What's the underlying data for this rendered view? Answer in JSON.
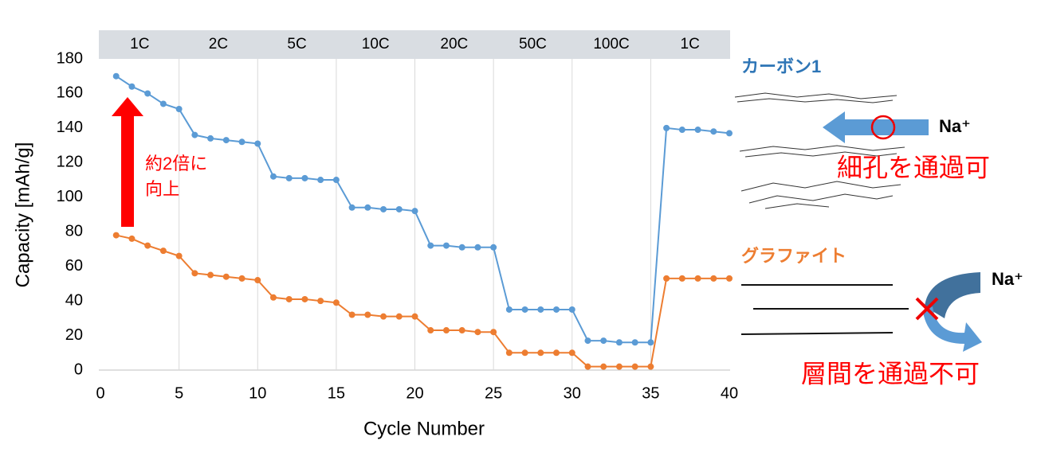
{
  "chart_data": {
    "type": "line",
    "x_label": "Cycle Number",
    "y_label": "Capacity [mAh/g]",
    "bands": [
      "1C",
      "2C",
      "5C",
      "10C",
      "20C",
      "50C",
      "100C",
      "1C"
    ],
    "x": [
      1,
      2,
      3,
      4,
      5,
      6,
      7,
      8,
      9,
      10,
      11,
      12,
      13,
      14,
      15,
      16,
      17,
      18,
      19,
      20,
      21,
      22,
      23,
      24,
      25,
      26,
      27,
      28,
      29,
      30,
      31,
      32,
      33,
      34,
      35,
      36,
      37,
      38,
      39,
      40
    ],
    "series": [
      {
        "name": "カーボン1",
        "color": "#5b9bd5",
        "label_color": "#2e75b6",
        "values": [
          170,
          164,
          160,
          154,
          151,
          136,
          134,
          133,
          132,
          131,
          112,
          111,
          111,
          110,
          110,
          94,
          94,
          93,
          93,
          92,
          72,
          72,
          71,
          71,
          71,
          35,
          35,
          35,
          35,
          35,
          17,
          17,
          16,
          16,
          16,
          140,
          139,
          139,
          138,
          137
        ]
      },
      {
        "name": "グラファイト",
        "color": "#ed7d31",
        "label_color": "#ed7d31",
        "values": [
          78,
          76,
          72,
          69,
          66,
          56,
          55,
          54,
          53,
          52,
          42,
          41,
          41,
          40,
          39,
          32,
          32,
          31,
          31,
          31,
          23,
          23,
          23,
          22,
          22,
          10,
          10,
          10,
          10,
          10,
          2,
          2,
          2,
          2,
          2,
          53,
          53,
          53,
          53,
          53
        ]
      }
    ],
    "xlim": [
      0,
      40
    ],
    "xticks": [
      0,
      5,
      10,
      15,
      20,
      25,
      30,
      35,
      40
    ],
    "ylim": [
      0,
      180
    ],
    "yticks": [
      0,
      20,
      40,
      60,
      80,
      100,
      120,
      140,
      160,
      180
    ],
    "grid": "x",
    "annotations": {
      "increase": [
        "約2倍に",
        "向上"
      ],
      "ion_top": "Na⁺",
      "ion_bottom": "Na⁺",
      "pass": "細孔を通過可",
      "block": "層間を通過不可"
    }
  }
}
